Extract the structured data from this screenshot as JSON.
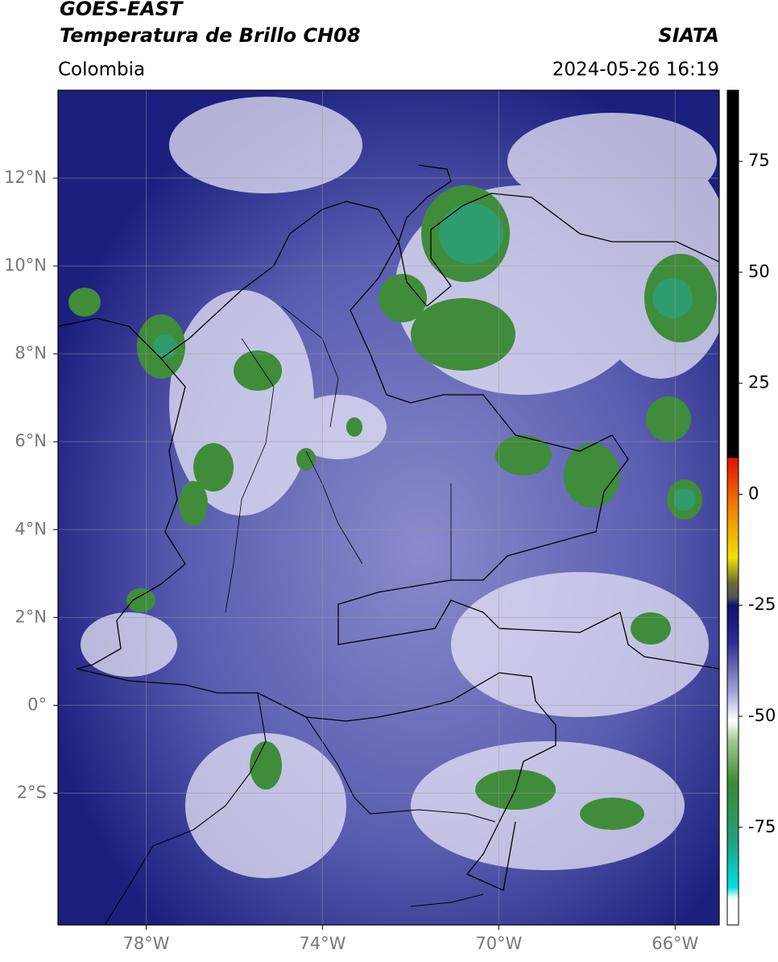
{
  "header": {
    "title": "GOES-EAST",
    "subtitle": "Temperatura de Brillo CH08",
    "source": "SIATA",
    "region": "Colombia",
    "datetime": "2024-05-26 16:19"
  },
  "map": {
    "xlim": [
      -80,
      -65
    ],
    "ylim": [
      -5,
      14
    ],
    "xticks": [
      {
        "value": -78,
        "label": "78°W"
      },
      {
        "value": -74,
        "label": "74°W"
      },
      {
        "value": -70,
        "label": "70°W"
      },
      {
        "value": -66,
        "label": "66°W"
      }
    ],
    "yticks": [
      {
        "value": 12,
        "label": "12°N"
      },
      {
        "value": 10,
        "label": "10°N"
      },
      {
        "value": 8,
        "label": "8°N"
      },
      {
        "value": 6,
        "label": "6°N"
      },
      {
        "value": 4,
        "label": "4°N"
      },
      {
        "value": 2,
        "label": "2°N"
      },
      {
        "value": 0,
        "label": "0°"
      },
      {
        "value": -2,
        "label": "2°S"
      }
    ],
    "grid": true
  },
  "colorbar": {
    "lim": [
      -97,
      91
    ],
    "ticks": [
      75,
      50,
      25,
      0,
      -25,
      -50,
      -75
    ]
  }
}
